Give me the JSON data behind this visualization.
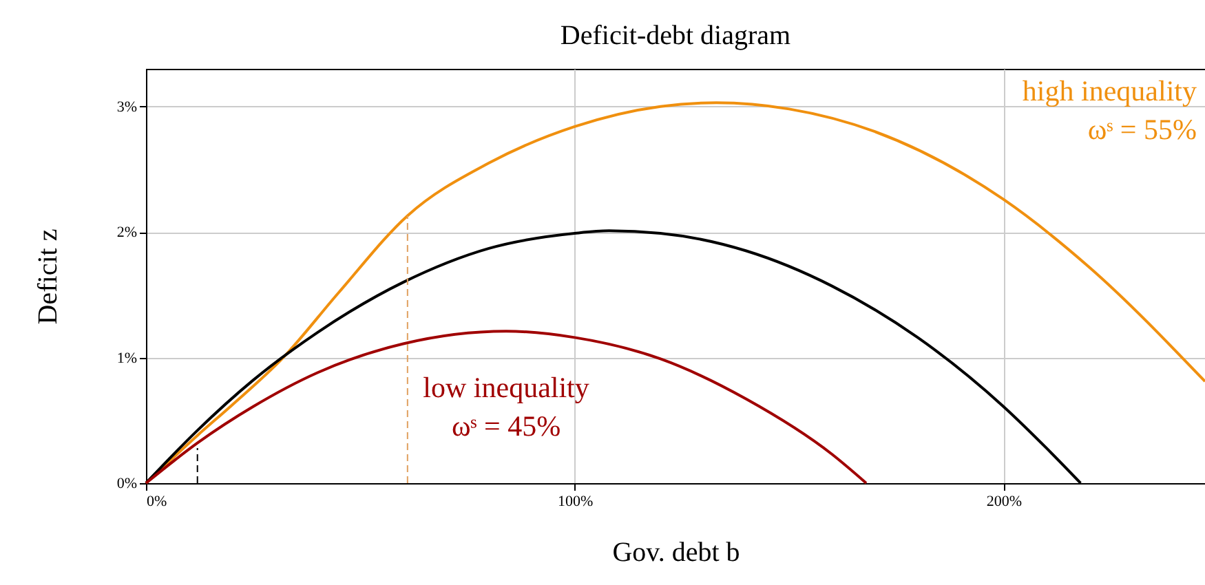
{
  "chart_data": {
    "type": "line",
    "title": "Deficit-debt diagram",
    "xlabel": "Gov. debt b",
    "ylabel": "Deficit z",
    "xlim": [
      0,
      247
    ],
    "ylim": [
      0,
      3.3
    ],
    "xticks": [
      {
        "value": 0,
        "label": "0%"
      },
      {
        "value": 100,
        "label": "100%"
      },
      {
        "value": 200,
        "label": "200%"
      }
    ],
    "yticks": [
      {
        "value": 0,
        "label": "0%"
      },
      {
        "value": 1,
        "label": "1%"
      },
      {
        "value": 2,
        "label": "2%"
      },
      {
        "value": 3,
        "label": "3%"
      }
    ],
    "grid": true,
    "line_style": "solid",
    "marker": "none",
    "series": [
      {
        "name": "high inequality\nωˢ = 55%",
        "color": "#f0900f",
        "x": [
          0,
          12,
          20,
          32,
          45,
          61,
          80,
          100,
          120,
          133,
          150,
          170,
          200,
          220,
          247
        ],
        "values": [
          0,
          0.38,
          0.62,
          1.0,
          1.52,
          2.13,
          2.55,
          2.84,
          3.0,
          3.03,
          2.98,
          2.8,
          2.26,
          1.72,
          0.81
        ]
      },
      {
        "color": "#000000",
        "x": [
          0,
          12,
          25,
          40,
          60,
          80,
          100,
          108,
          120,
          140,
          160,
          180,
          200,
          210,
          218
        ],
        "values": [
          0,
          0.42,
          0.82,
          1.2,
          1.6,
          1.87,
          1.99,
          2.01,
          1.99,
          1.85,
          1.57,
          1.16,
          0.61,
          0.28,
          0
        ]
      },
      {
        "name": "low inequality\nωˢ = 45%",
        "color": "#a00000",
        "x": [
          0,
          12,
          25,
          40,
          60,
          84,
          100,
          120,
          140,
          160,
          168
        ],
        "values": [
          0,
          0.32,
          0.61,
          0.88,
          1.11,
          1.21,
          1.16,
          0.99,
          0.67,
          0.23,
          0
        ]
      },
      {
        "color": "#000000",
        "line_style": "dashed",
        "x": [
          12,
          12
        ],
        "values": [
          0,
          0.28
        ]
      },
      {
        "color": "#e0a060",
        "line_style": "dashed",
        "x": [
          61,
          61
        ],
        "values": [
          0,
          2.13
        ]
      }
    ]
  }
}
